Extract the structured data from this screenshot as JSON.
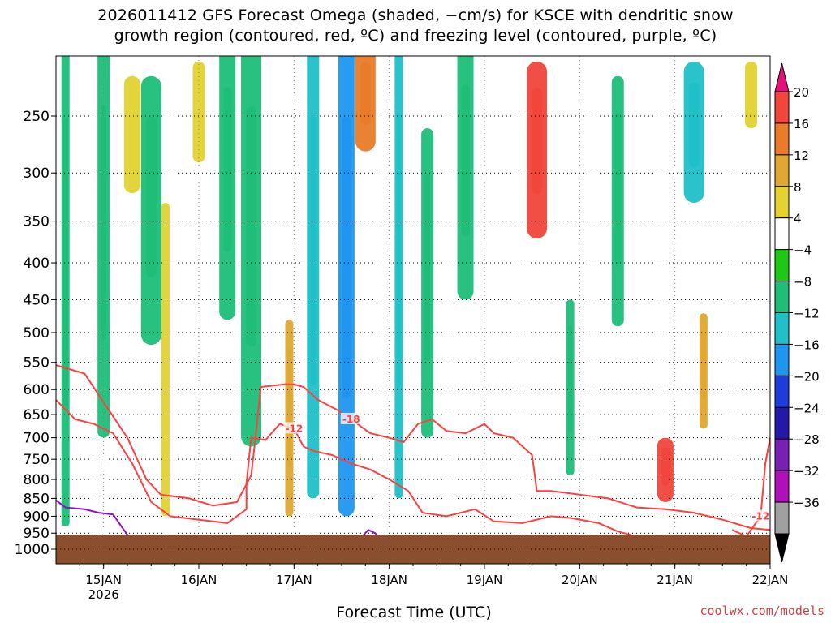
{
  "title_line1": "2026011412 GFS Forecast Omega (shaded, −cm/s) for KSCE with dendritic snow",
  "title_line2": "growth region (contoured, red, ºC) and freezing level (contoured, purple, ºC)",
  "credit": "coolwx.com/models",
  "chart_data": {
    "type": "heatmap",
    "title": "2026011412 GFS Forecast Omega (shaded, −cm/s) for KSCE with dendritic snow growth region (contoured, red, ºC) and freezing level (contoured, purple, ºC)",
    "xlabel": "Forecast Time (UTC)",
    "ylabel": "",
    "x_ticks": [
      "15JAN",
      "16JAN",
      "17JAN",
      "18JAN",
      "19JAN",
      "20JAN",
      "21JAN",
      "22JAN"
    ],
    "x_year_label": "2026",
    "x_range_days": [
      14.5,
      22.0
    ],
    "y_ticks": [
      250,
      300,
      350,
      400,
      450,
      500,
      550,
      600,
      650,
      700,
      750,
      800,
      850,
      900,
      950,
      1000
    ],
    "y_range_hpa": [
      200,
      1025
    ],
    "y_scale": "log-pressure",
    "grid": true,
    "colorbar": {
      "labels": [
        "20",
        "16",
        "12",
        "8",
        "4",
        "−4",
        "−8",
        "−12",
        "−16",
        "−20",
        "−24",
        "−28",
        "−32",
        "−36"
      ],
      "colors": [
        "#e3127a",
        "#f0463c",
        "#e87c28",
        "#dfa830",
        "#e3d232",
        "#ffffff",
        "#1ec814",
        "#1ebe78",
        "#20c0c8",
        "#1e96f0",
        "#1e3cd8",
        "#2418a8",
        "#7820b4",
        "#b010b8",
        "#a0a0a0",
        "#000000"
      ]
    },
    "contours": [
      {
        "label": "-18",
        "color": "#ff4040",
        "level": -18,
        "points": [
          [
            14.5,
            555
          ],
          [
            14.8,
            570
          ],
          [
            15.0,
            625
          ],
          [
            15.25,
            700
          ],
          [
            15.45,
            800
          ],
          [
            15.6,
            840
          ],
          [
            15.9,
            850
          ],
          [
            16.15,
            870
          ],
          [
            16.4,
            860
          ],
          [
            16.55,
            790
          ],
          [
            16.6,
            690
          ],
          [
            16.65,
            595
          ],
          [
            16.9,
            590
          ],
          [
            17.0,
            590
          ],
          [
            17.1,
            595
          ],
          [
            17.25,
            620
          ],
          [
            17.45,
            640
          ],
          [
            17.6,
            660
          ],
          [
            17.8,
            690
          ],
          [
            18.0,
            700
          ],
          [
            18.15,
            710
          ],
          [
            18.3,
            670
          ],
          [
            18.45,
            660
          ],
          [
            18.6,
            685
          ],
          [
            18.8,
            690
          ],
          [
            19.0,
            670
          ],
          [
            19.1,
            690
          ],
          [
            19.3,
            700
          ],
          [
            19.5,
            740
          ],
          [
            19.55,
            830
          ],
          [
            19.7,
            830
          ],
          [
            20.0,
            840
          ],
          [
            20.3,
            850
          ],
          [
            20.6,
            875
          ],
          [
            20.9,
            880
          ],
          [
            21.2,
            890
          ],
          [
            21.5,
            910
          ],
          [
            21.8,
            935
          ],
          [
            22.0,
            940
          ]
        ]
      },
      {
        "label": "-12",
        "color": "#ff4040",
        "level": -12,
        "points": [
          [
            14.5,
            620
          ],
          [
            14.7,
            660
          ],
          [
            14.9,
            670
          ],
          [
            15.1,
            690
          ],
          [
            15.3,
            760
          ],
          [
            15.5,
            860
          ],
          [
            15.7,
            900
          ],
          [
            16.0,
            910
          ],
          [
            16.3,
            920
          ],
          [
            16.5,
            880
          ],
          [
            16.5,
            810
          ],
          [
            16.55,
            700
          ],
          [
            16.7,
            705
          ],
          [
            16.85,
            670
          ],
          [
            17.0,
            680
          ],
          [
            17.1,
            720
          ],
          [
            17.2,
            730
          ],
          [
            17.4,
            740
          ],
          [
            17.6,
            760
          ],
          [
            17.8,
            775
          ],
          [
            18.0,
            800
          ],
          [
            18.2,
            830
          ],
          [
            18.35,
            890
          ],
          [
            18.6,
            900
          ],
          [
            18.9,
            880
          ],
          [
            19.1,
            915
          ],
          [
            19.4,
            920
          ],
          [
            19.7,
            900
          ],
          [
            19.9,
            905
          ],
          [
            20.2,
            920
          ],
          [
            20.4,
            945
          ],
          [
            20.6,
            960
          ]
        ]
      },
      {
        "label": "0",
        "color": "#9010c8",
        "level": 0,
        "points": [
          [
            14.5,
            855
          ],
          [
            14.6,
            875
          ],
          [
            14.8,
            880
          ],
          [
            14.95,
            890
          ],
          [
            15.1,
            895
          ],
          [
            15.2,
            935
          ],
          [
            15.25,
            955
          ]
        ]
      },
      {
        "label": "0",
        "color": "#9010c8",
        "level": 0,
        "points": [
          [
            17.7,
            965
          ],
          [
            17.78,
            940
          ],
          [
            17.85,
            950
          ],
          [
            17.9,
            965
          ]
        ]
      },
      {
        "label": "-12",
        "color": "#ff4040",
        "level": -12,
        "points": [
          [
            21.6,
            940
          ],
          [
            21.75,
            960
          ],
          [
            21.9,
            900
          ],
          [
            21.95,
            760
          ],
          [
            22.0,
            700
          ]
        ]
      }
    ],
    "omega_features": [
      {
        "time": 14.6,
        "p_top": 200,
        "p_bot": 930,
        "value": -10
      },
      {
        "time": 15.0,
        "p_top": 200,
        "p_bot": 700,
        "value": -8
      },
      {
        "time": 15.3,
        "p_top": 220,
        "p_bot": 320,
        "value": 4
      },
      {
        "time": 15.5,
        "p_top": 220,
        "p_bot": 520,
        "value": -10
      },
      {
        "time": 15.65,
        "p_top": 330,
        "p_bot": 900,
        "value": 6
      },
      {
        "time": 16.0,
        "p_top": 210,
        "p_bot": 290,
        "value": 6
      },
      {
        "time": 16.3,
        "p_top": 200,
        "p_bot": 480,
        "value": -8
      },
      {
        "time": 16.55,
        "p_top": 200,
        "p_bot": 720,
        "value": -10
      },
      {
        "time": 16.95,
        "p_top": 480,
        "p_bot": 900,
        "value": 8
      },
      {
        "time": 17.2,
        "p_top": 200,
        "p_bot": 850,
        "value": -12
      },
      {
        "time": 17.55,
        "p_top": 200,
        "p_bot": 900,
        "value": -16
      },
      {
        "time": 17.75,
        "p_top": 200,
        "p_bot": 280,
        "value": 14
      },
      {
        "time": 18.1,
        "p_top": 200,
        "p_bot": 850,
        "value": -14
      },
      {
        "time": 18.4,
        "p_top": 260,
        "p_bot": 700,
        "value": -8
      },
      {
        "time": 18.8,
        "p_top": 200,
        "p_bot": 450,
        "value": -10
      },
      {
        "time": 19.55,
        "p_top": 210,
        "p_bot": 370,
        "value": 18
      },
      {
        "time": 19.9,
        "p_top": 450,
        "p_bot": 790,
        "value": -10
      },
      {
        "time": 20.4,
        "p_top": 220,
        "p_bot": 490,
        "value": -8
      },
      {
        "time": 20.9,
        "p_top": 700,
        "p_bot": 860,
        "value": 16
      },
      {
        "time": 21.2,
        "p_top": 210,
        "p_bot": 330,
        "value": -14
      },
      {
        "time": 21.3,
        "p_top": 470,
        "p_bot": 680,
        "value": 10
      },
      {
        "time": 21.8,
        "p_top": 210,
        "p_bot": 260,
        "value": 6
      }
    ],
    "terrain_pressure_hpa": 955
  }
}
